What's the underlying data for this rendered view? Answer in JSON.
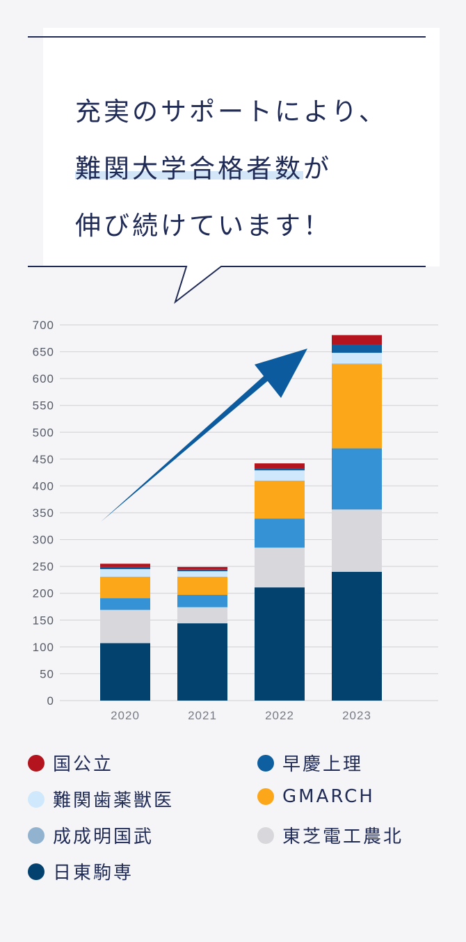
{
  "headline": {
    "line1": "充実のサポートにより、",
    "line2_highlight": "難関大学合格者数",
    "line2_rest": "が",
    "line3": "伸び続けています！"
  },
  "colors": {
    "navy_text": "#1f2a55",
    "highlight": "#d3e6f7",
    "arrow": "#0b5b9e"
  },
  "chart_data": {
    "type": "bar",
    "stacked": true,
    "categories": [
      "2020",
      "2021",
      "2022",
      "2023"
    ],
    "ylim": [
      0,
      700
    ],
    "yticks": [
      0,
      50,
      100,
      150,
      200,
      250,
      300,
      350,
      400,
      450,
      500,
      550,
      600,
      650,
      700
    ],
    "grid": true,
    "legend_position": "bottom",
    "series": [
      {
        "name": "日東駒専",
        "color": "#03426f",
        "values": [
          107,
          144,
          211,
          240
        ]
      },
      {
        "name": "東芝電工農北",
        "color": "#d8d7db",
        "values": [
          62,
          30,
          74,
          116
        ]
      },
      {
        "name": "早慶上理",
        "color": "#3592d5",
        "values": [
          22,
          23,
          54,
          114
        ]
      },
      {
        "name": "GMARCH",
        "color": "#fca619",
        "values": [
          39,
          33,
          70,
          157
        ]
      },
      {
        "name": "成成明国武",
        "color": "#91b3cf",
        "values": [
          1,
          1,
          1,
          1
        ]
      },
      {
        "name": "難関歯薬獣医",
        "color": "#cfe8fb",
        "values": [
          14,
          10,
          19,
          20
        ]
      },
      {
        "name": "早慶上理",
        "color": "#0d5fa0",
        "values": [
          4,
          3,
          4,
          15
        ]
      },
      {
        "name": "国公立",
        "color": "#b3141d",
        "values": [
          6,
          5,
          9,
          18
        ]
      }
    ]
  },
  "legend": [
    {
      "label": "国公立",
      "color": "#b3141d"
    },
    {
      "label": "早慶上理",
      "color": "#0d5fa0"
    },
    {
      "label": "難関歯薬獣医",
      "color": "#cfe8fb"
    },
    {
      "label": "GMARCH",
      "color": "#fca619"
    },
    {
      "label": "成成明国武",
      "color": "#91b3cf"
    },
    {
      "label": "東芝電工農北",
      "color": "#d8d7db"
    },
    {
      "label": "日東駒専",
      "color": "#03426f"
    }
  ]
}
